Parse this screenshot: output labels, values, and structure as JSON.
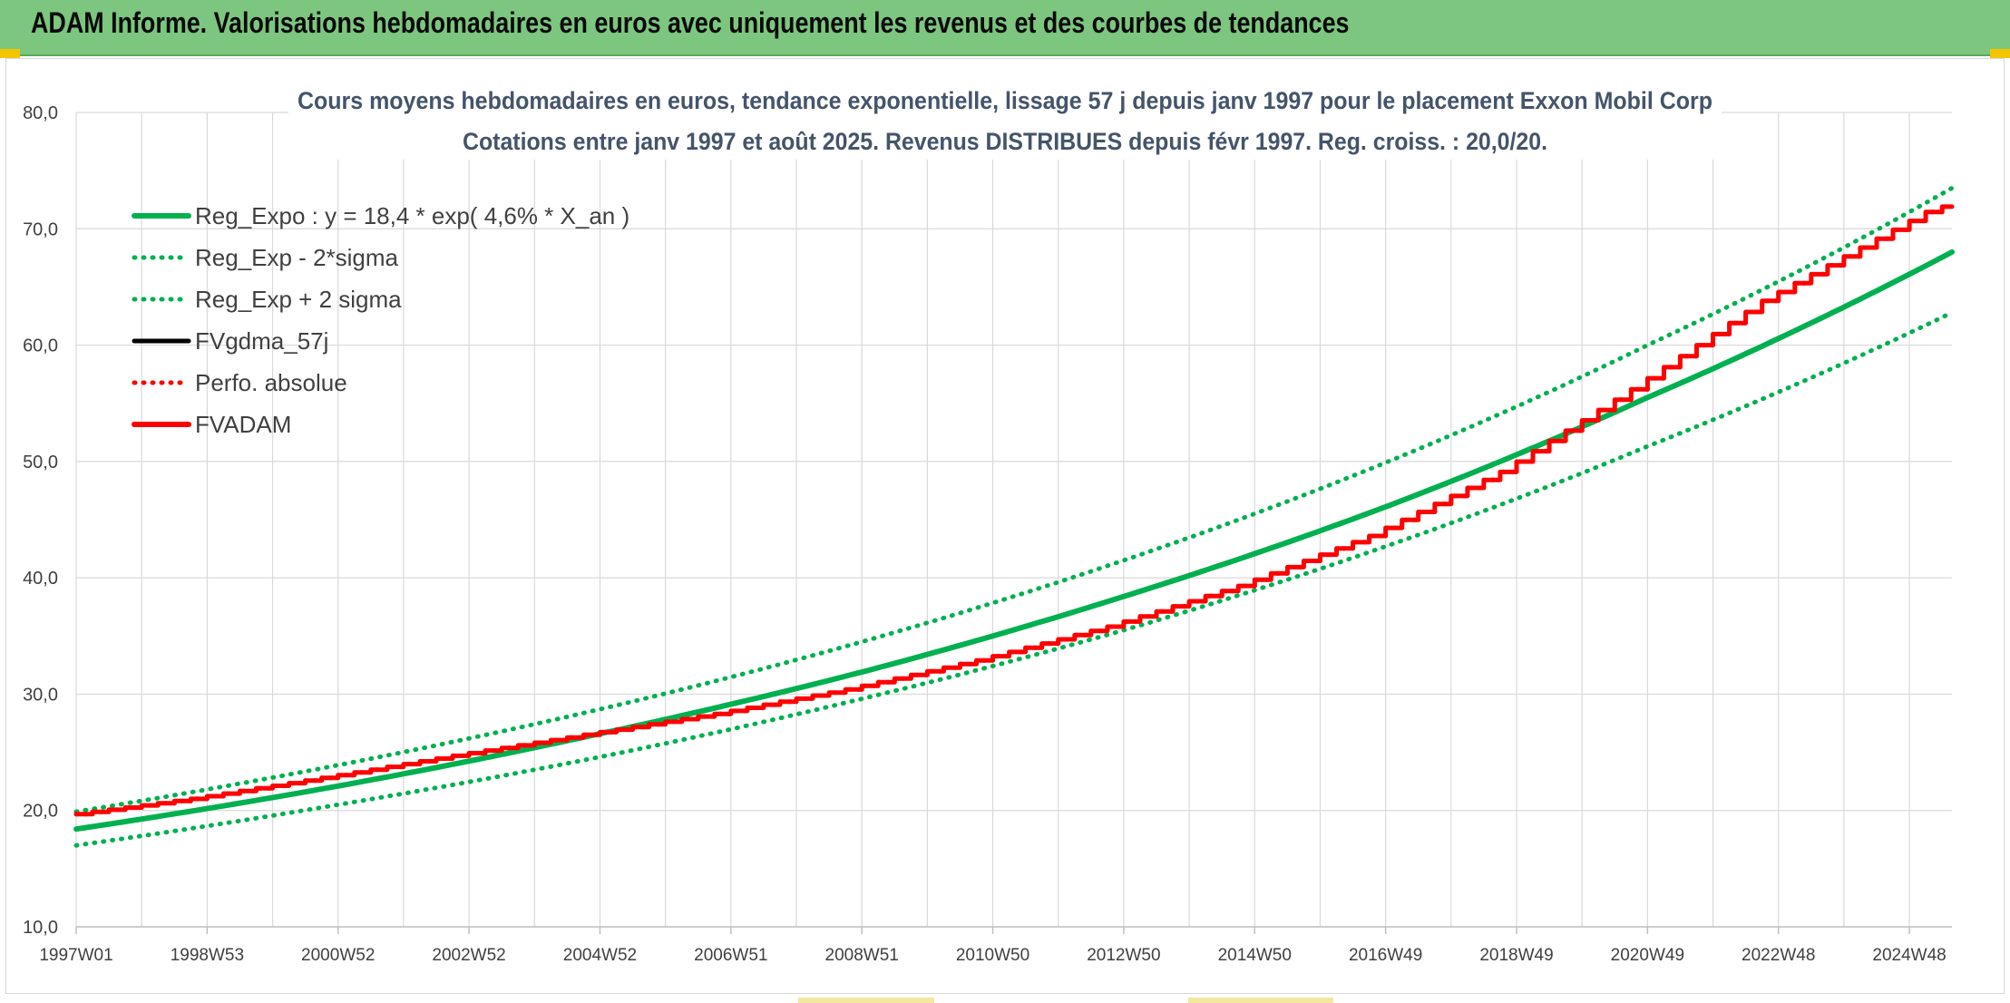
{
  "header": {
    "title": "ADAM Informe. Valorisations hebdomadaires en euros avec uniquement les revenus et des courbes de tendances"
  },
  "colors": {
    "banner": "#7cc67f",
    "reg_expo": "#00b050",
    "fvadam": "#ff0000",
    "fvgdma": "#000000",
    "grid": "#d9d9d9",
    "axis_text": "#404040",
    "title_text": "#44546a"
  },
  "chart_data": {
    "type": "line",
    "title": "Cours moyens hebdomadaires en euros, tendance exponentielle, lissage 57 j depuis janv 1997 pour le placement Exxon Mobil Corp",
    "subtitle": "Cotations entre janv 1997 et août 2025. Revenus DISTRIBUES depuis févr 1997. Reg. croiss. : 20,0/20.",
    "xlabel": "",
    "ylabel": "",
    "ylim": [
      10,
      80
    ],
    "y_ticks": [
      "10,0",
      "20,0",
      "30,0",
      "40,0",
      "50,0",
      "60,0",
      "70,0",
      "80,0"
    ],
    "x_range_years": [
      1997.0,
      2025.65
    ],
    "x_tick_labels": [
      "1997W01",
      "1998W53",
      "2000W52",
      "2002W52",
      "2004W52",
      "2006W51",
      "2008W51",
      "2010W50",
      "2012W50",
      "2014W50",
      "2016W49",
      "2018W49",
      "2020W49",
      "2022W48",
      "2024W48"
    ],
    "x_tick_years": [
      1997.0,
      1999.0,
      2001.0,
      2003.0,
      2005.0,
      2007.0,
      2009.0,
      2011.0,
      2013.0,
      2015.0,
      2017.0,
      2019.0,
      2021.0,
      2023.0,
      2025.0
    ],
    "grid": true,
    "legend_position": "top-left",
    "series": [
      {
        "name": "Reg_Expo : y = 18,4 * exp( 4,6% *  X_an )",
        "style": "solid-thick",
        "color": "#00b050",
        "x": [
          1997.0,
          2001.0,
          2005.0,
          2009.0,
          2013.0,
          2017.0,
          2021.0,
          2025.65
        ],
        "y": [
          18.4,
          22.1,
          26.6,
          31.9,
          38.4,
          46.1,
          55.5,
          68.0
        ]
      },
      {
        "name": "Reg_Exp - 2*sigma",
        "style": "dotted",
        "color": "#00b050",
        "x": [
          1997.0,
          2001.0,
          2005.0,
          2009.0,
          2013.0,
          2017.0,
          2021.0,
          2025.65
        ],
        "y": [
          17.0,
          20.5,
          24.6,
          29.6,
          35.5,
          42.7,
          51.3,
          62.8
        ]
      },
      {
        "name": "Reg_Exp + 2 sigma",
        "style": "dotted",
        "color": "#00b050",
        "x": [
          1997.0,
          2001.0,
          2005.0,
          2009.0,
          2013.0,
          2017.0,
          2021.0,
          2025.65
        ],
        "y": [
          19.9,
          23.9,
          28.7,
          34.5,
          41.5,
          49.9,
          60.0,
          73.5
        ]
      },
      {
        "name": "FVgdma_57j",
        "style": "solid",
        "color": "#000000",
        "x": [
          1997.0,
          1999.0,
          2001.0,
          2003.0,
          2005.0,
          2007.0,
          2009.0,
          2011.0,
          2013.0,
          2015.0,
          2017.0,
          2019.0,
          2021.0,
          2023.0,
          2025.65
        ],
        "y": [
          19.5,
          21.0,
          22.8,
          24.7,
          26.5,
          28.3,
          30.4,
          32.9,
          35.8,
          39.3,
          43.6,
          49.1,
          56.2,
          63.8,
          71.9
        ]
      },
      {
        "name": "Perfo. absolue",
        "style": "dotted",
        "color": "#ff0000",
        "x": [
          1997.0,
          1999.0,
          2001.0,
          2003.0,
          2005.0,
          2007.0,
          2009.0,
          2011.0,
          2013.0,
          2015.0,
          2017.0,
          2019.0,
          2021.0,
          2023.0,
          2025.65
        ],
        "y": [
          19.5,
          21.0,
          22.8,
          24.7,
          26.5,
          28.3,
          30.4,
          32.9,
          35.8,
          39.3,
          43.6,
          49.1,
          56.2,
          63.8,
          71.9
        ]
      },
      {
        "name": "FVADAM",
        "style": "solid-thick",
        "color": "#ff0000",
        "x": [
          1997.0,
          1999.0,
          2001.0,
          2003.0,
          2005.0,
          2007.0,
          2009.0,
          2011.0,
          2013.0,
          2015.0,
          2017.0,
          2019.0,
          2021.0,
          2023.0,
          2025.65
        ],
        "y": [
          19.5,
          21.0,
          22.8,
          24.7,
          26.5,
          28.3,
          30.4,
          32.9,
          35.8,
          39.3,
          43.6,
          49.1,
          56.2,
          63.8,
          71.9
        ]
      }
    ]
  }
}
